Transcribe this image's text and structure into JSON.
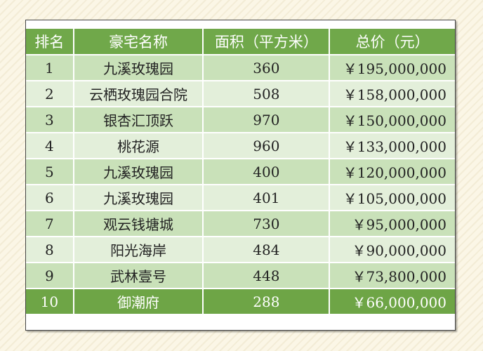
{
  "headers": [
    "排名",
    "豪宅名称",
    "面积（平方米）",
    "总价（元）"
  ],
  "rows": [
    [
      "1",
      "九溪玫瑰园",
      "360",
      "￥195,000,000"
    ],
    [
      "2",
      "云栖玫瑰园合院",
      "508",
      "￥158,000,000"
    ],
    [
      "3",
      "银杏汇顶跃",
      "970",
      "￥150,000,000"
    ],
    [
      "4",
      "桃花源",
      "960",
      "￥133,000,000"
    ],
    [
      "5",
      "九溪玫瑰园",
      "400",
      "￥120,000,000"
    ],
    [
      "6",
      "九溪玫瑰园",
      "401",
      "￥105,000,000"
    ],
    [
      "7",
      "观云钱塘城",
      "730",
      "￥95,000,000"
    ],
    [
      "8",
      "阳光海岸",
      "484",
      "￥90,000,000"
    ],
    [
      "9",
      "武林壹号",
      "448",
      "￥73,800,000"
    ],
    [
      "10",
      "御潮府",
      "288",
      "￥66,000,000"
    ]
  ],
  "colors": {
    "header": "#70a84a",
    "row_dark": "#c9e1b9",
    "row_light": "#e3efda",
    "highlight": "#6ea546"
  }
}
